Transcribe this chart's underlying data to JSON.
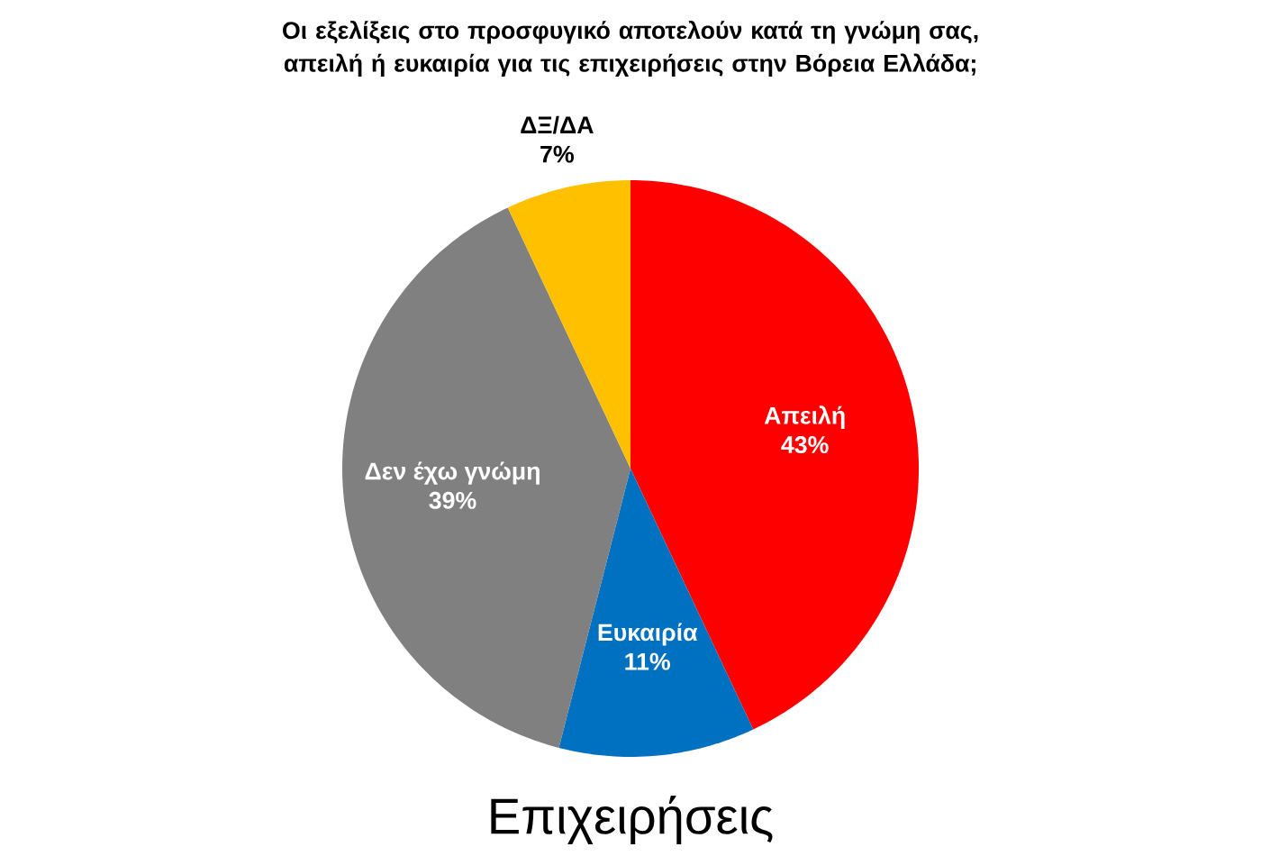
{
  "chart_data": {
    "type": "pie",
    "title": "Οι εξελίξεις στο προσφυγικό αποτελούν κατά τη γνώμη σας, απειλή ή ευκαιρία για τις επιχειρήσεις στην Βόρεια Ελλάδα;",
    "xlabel": "Επιχειρήσεις",
    "categories": [
      "Απειλή",
      "Ευκαιρία",
      "Δεν έχω γνώμη",
      "ΔΞ/ΔΑ"
    ],
    "values": [
      43,
      11,
      39,
      7
    ],
    "colors": [
      "#ff0000",
      "#0070c0",
      "#808080",
      "#ffc000"
    ],
    "value_labels": [
      "43%",
      "11%",
      "39%",
      "7%"
    ]
  }
}
